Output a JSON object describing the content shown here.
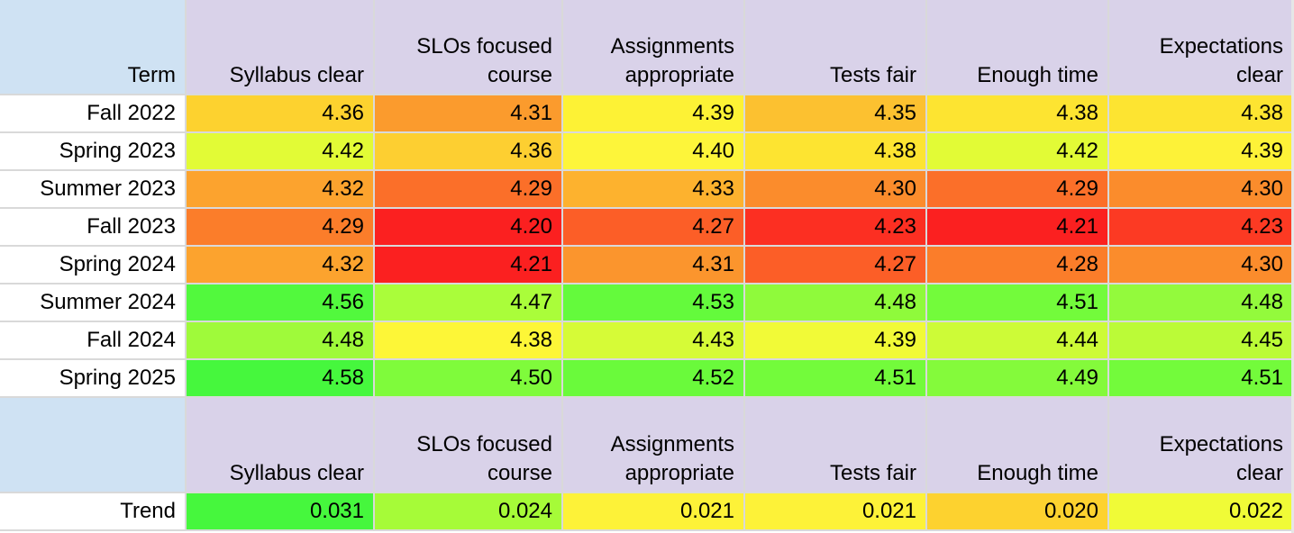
{
  "columns": [
    "Syllabus clear",
    "SLOs focused course",
    "Assignments appropriate",
    "Tests fair",
    "Enough time",
    "Expectations clear"
  ],
  "header_lines": [
    [
      "Syllabus clear"
    ],
    [
      "SLOs focused",
      "course"
    ],
    [
      "Assignments",
      "appropriate"
    ],
    [
      "Tests fair"
    ],
    [
      "Enough time"
    ],
    [
      "Expectations",
      "clear"
    ]
  ],
  "term_header": "Term",
  "rows": [
    {
      "term": "Fall 2022",
      "values": [
        "4.36",
        "4.31",
        "4.39",
        "4.35",
        "4.38",
        "4.38"
      ],
      "colors": [
        "#fdd22f",
        "#fb9b2d",
        "#fdf235",
        "#fcc130",
        "#fde431",
        "#fde431"
      ]
    },
    {
      "term": "Spring 2023",
      "values": [
        "4.42",
        "4.36",
        "4.40",
        "4.38",
        "4.42",
        "4.39"
      ],
      "colors": [
        "#e2fb36",
        "#fdcf31",
        "#fdf53a",
        "#fde431",
        "#e2fb36",
        "#fdf238"
      ]
    },
    {
      "term": "Summer 2023",
      "values": [
        "4.32",
        "4.29",
        "4.33",
        "4.30",
        "4.29",
        "4.30"
      ],
      "colors": [
        "#fca32e",
        "#fb6f29",
        "#fdb22e",
        "#fb8c2c",
        "#fb6f29",
        "#fb8c2c"
      ]
    },
    {
      "term": "Fall 2023",
      "values": [
        "4.29",
        "4.20",
        "4.27",
        "4.23",
        "4.21",
        "4.23"
      ],
      "colors": [
        "#fb7d2a",
        "#fb2020",
        "#fc5e27",
        "#fc2f22",
        "#fb2020",
        "#fc3a23"
      ]
    },
    {
      "term": "Spring 2024",
      "values": [
        "4.32",
        "4.21",
        "4.31",
        "4.27",
        "4.28",
        "4.30"
      ],
      "colors": [
        "#fca32e",
        "#fb2020",
        "#fb952d",
        "#fc5e27",
        "#fb7d2a",
        "#fb8c2c"
      ]
    },
    {
      "term": "Summer 2024",
      "values": [
        "4.56",
        "4.47",
        "4.53",
        "4.48",
        "4.51",
        "4.48"
      ],
      "colors": [
        "#52f93d",
        "#aafd3a",
        "#64fa3c",
        "#8ffa3b",
        "#73fb3b",
        "#93fa3c"
      ]
    },
    {
      "term": "Fall 2024",
      "values": [
        "4.48",
        "4.38",
        "4.43",
        "4.39",
        "4.44",
        "4.45"
      ],
      "colors": [
        "#9ffa3a",
        "#fdf637",
        "#d6fb37",
        "#f1fa37",
        "#cdfb37",
        "#bbfb37"
      ]
    },
    {
      "term": "Spring 2025",
      "values": [
        "4.58",
        "4.50",
        "4.52",
        "4.51",
        "4.49",
        "4.51"
      ],
      "colors": [
        "#46f73d",
        "#7ffb3b",
        "#6afa3b",
        "#73fb3b",
        "#84fa3b",
        "#73fb3b"
      ]
    }
  ],
  "trend": {
    "label": "Trend",
    "values": [
      "0.031",
      "0.024",
      "0.021",
      "0.021",
      "0.020",
      "0.022"
    ],
    "colors": [
      "#46f73d",
      "#a6fb38",
      "#fdf238",
      "#fdf238",
      "#fdd22f",
      "#f0fb37"
    ]
  },
  "colors": {
    "term_header_bg": "#cfe2f3",
    "column_header_bg": "#d9d2e9",
    "grid_line": "#d9d9d9",
    "low_value": "#fb2020",
    "mid_value": "#fdf238",
    "high_value": "#46f73d"
  }
}
